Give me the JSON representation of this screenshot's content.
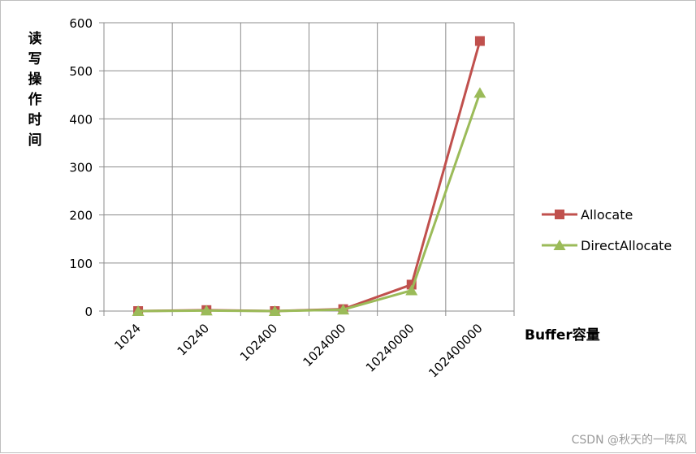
{
  "chart_data": {
    "type": "line",
    "categories": [
      "1024",
      "10240",
      "102400",
      "1024000",
      "10240000",
      "102400000"
    ],
    "series": [
      {
        "name": "Allocate",
        "values": [
          0,
          2,
          0,
          4,
          55,
          562
        ],
        "color": "#c0504d",
        "marker": "square"
      },
      {
        "name": "DirectAllocate",
        "values": [
          0,
          1,
          0,
          3,
          43,
          454
        ],
        "color": "#9bbb59",
        "marker": "triangle"
      }
    ],
    "ylim": [
      0,
      600
    ],
    "yticks": [
      0,
      100,
      200,
      300,
      400,
      500,
      600
    ],
    "ylabel": "读写操作时间",
    "xlabel": "Buffer容量",
    "grid": true,
    "legend": "right"
  },
  "watermark": "CSDN @秋天的一阵风"
}
